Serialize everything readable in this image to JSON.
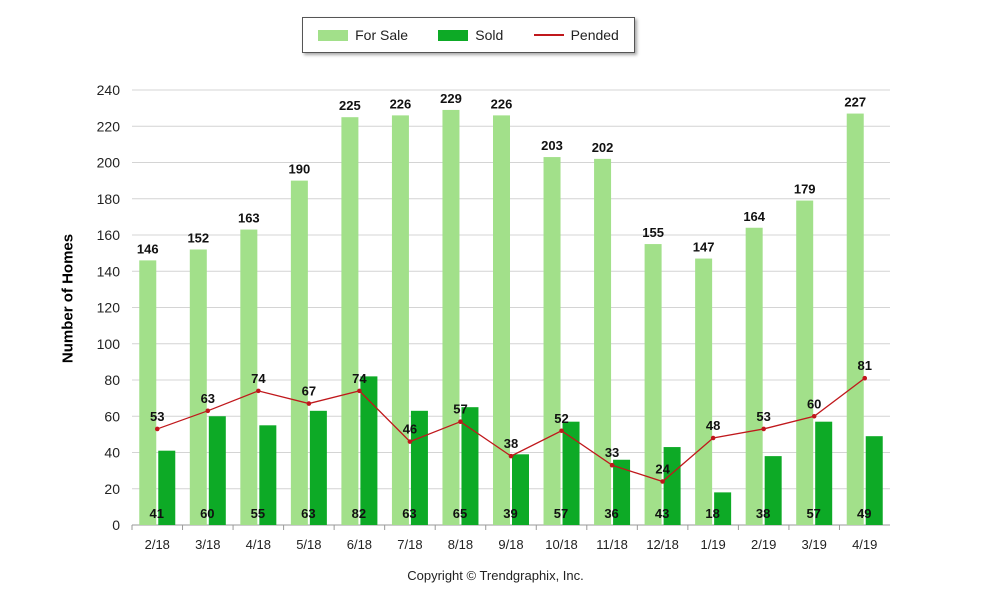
{
  "chart_data": {
    "type": "bar",
    "categories": [
      "2/18",
      "3/18",
      "4/18",
      "5/18",
      "6/18",
      "7/18",
      "8/18",
      "9/18",
      "10/18",
      "11/18",
      "12/18",
      "1/19",
      "2/19",
      "3/19",
      "4/19"
    ],
    "series": [
      {
        "name": "For Sale",
        "type": "bar",
        "color": "#a2e08a",
        "values": [
          146,
          152,
          163,
          190,
          225,
          226,
          229,
          226,
          203,
          202,
          155,
          147,
          164,
          179,
          227
        ]
      },
      {
        "name": "Sold",
        "type": "bar",
        "color": "#0daa26",
        "values": [
          41,
          60,
          55,
          63,
          82,
          63,
          65,
          39,
          57,
          36,
          43,
          18,
          38,
          57,
          49
        ]
      },
      {
        "name": "Pended",
        "type": "line",
        "color": "#c0181c",
        "values": [
          53,
          63,
          74,
          67,
          74,
          46,
          57,
          38,
          52,
          33,
          24,
          48,
          53,
          60,
          81
        ]
      }
    ],
    "ylabel": "Number of Homes",
    "xlabel": "",
    "ylim": [
      0,
      240
    ],
    "yticks": [
      0,
      20,
      40,
      60,
      80,
      100,
      120,
      140,
      160,
      180,
      200,
      220,
      240
    ],
    "grid": true,
    "legend_position": "top-center"
  },
  "footer": {
    "copyright": "Copyright © Trendgraphix, Inc."
  }
}
